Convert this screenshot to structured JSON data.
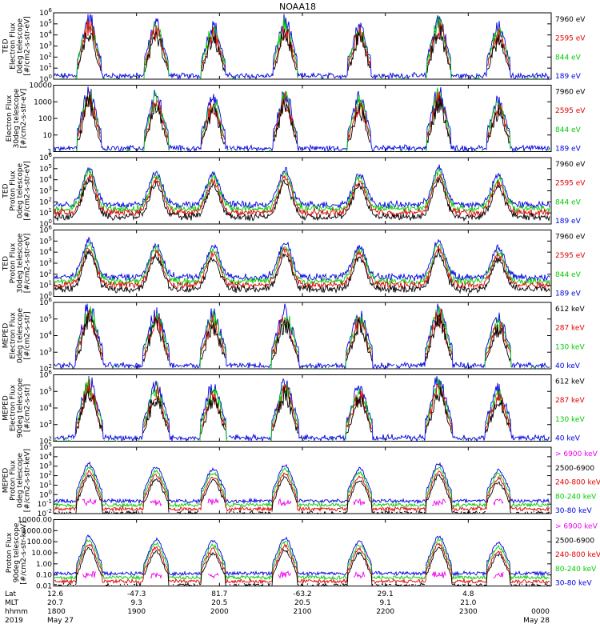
{
  "chart_data": {
    "type": "line",
    "title": "NOAA18",
    "panels": [
      {
        "id": "ted-electron-0deg",
        "ylabel": [
          "TED",
          "Electron Flux",
          "0deg telescope",
          "[#/cm2-s-str-eV]"
        ],
        "yscale": "log",
        "ylim": [
          1,
          1000000
        ],
        "ytick_labels": [
          "10^0",
          "10^1",
          "10^2",
          "10^3",
          "10^4",
          "10^5",
          "10^6"
        ],
        "series": [
          {
            "name": "7960 eV",
            "color": "#000000"
          },
          {
            "name": "2595 eV",
            "color": "#e00000"
          },
          {
            "name": "844 eV",
            "color": "#00cc00"
          },
          {
            "name": "189 eV",
            "color": "#0000e0"
          }
        ]
      },
      {
        "id": "ted-electron-30deg",
        "ylabel": [
          "Electron Flux",
          "30deg telescope",
          "[#/cm2-s-str-eV]"
        ],
        "yscale": "log",
        "ylim": [
          1,
          10000
        ],
        "ytick_labels": [
          "1",
          "10",
          "100",
          "1000",
          "10000"
        ],
        "series": [
          {
            "name": "7960 eV",
            "color": "#000000"
          },
          {
            "name": "2595 eV",
            "color": "#e00000"
          },
          {
            "name": "844 eV",
            "color": "#00cc00"
          },
          {
            "name": "189 eV",
            "color": "#0000e0"
          }
        ]
      },
      {
        "id": "ted-proton-0deg",
        "ylabel": [
          "TED",
          "Proton Flux",
          "0deg telescope",
          "[#/cm2-s-str-eV]"
        ],
        "yscale": "log",
        "ylim": [
          1,
          1000000
        ],
        "ytick_labels": [
          "10^0",
          "10^1",
          "10^2",
          "10^3",
          "10^4",
          "10^5",
          "10^6"
        ],
        "series": [
          {
            "name": "7960 eV",
            "color": "#000000"
          },
          {
            "name": "2595 eV",
            "color": "#e00000"
          },
          {
            "name": "844 eV",
            "color": "#00cc00"
          },
          {
            "name": "189 eV",
            "color": "#0000e0"
          }
        ]
      },
      {
        "id": "ted-proton-30deg",
        "ylabel": [
          "TED",
          "Proton Flux",
          "30deg telescope",
          "[#/cm2-s-str-eV]"
        ],
        "yscale": "log",
        "ylim": [
          1,
          1000000
        ],
        "ytick_labels": [
          "10^0",
          "10^1",
          "10^2",
          "10^3",
          "10^4",
          "10^5",
          "10^6"
        ],
        "series": [
          {
            "name": "7960 eV",
            "color": "#000000"
          },
          {
            "name": "2595 eV",
            "color": "#e00000"
          },
          {
            "name": "844 eV",
            "color": "#00cc00"
          },
          {
            "name": "189 eV",
            "color": "#0000e0"
          }
        ]
      },
      {
        "id": "meped-electron-0deg",
        "ylabel": [
          "MEPED",
          "Electron Flux",
          "0deg telescope",
          "[#/cm2-s-str]"
        ],
        "yscale": "log",
        "ylim": [
          100,
          1000000
        ],
        "ytick_labels": [
          "10^2",
          "10^3",
          "10^4",
          "10^5",
          "10^6"
        ],
        "series": [
          {
            "name": "612 keV",
            "color": "#000000"
          },
          {
            "name": "287 keV",
            "color": "#e00000"
          },
          {
            "name": "130 keV",
            "color": "#00cc00"
          },
          {
            "name": "40 keV",
            "color": "#0000e0"
          }
        ]
      },
      {
        "id": "meped-electron-90deg",
        "ylabel": [
          "MEPED",
          "Electron Flux",
          "90deg telescope",
          "[#/cm2-s-str]"
        ],
        "yscale": "log",
        "ylim": [
          100,
          1000000
        ],
        "ytick_labels": [
          "10^2",
          "10^3",
          "10^4",
          "10^5",
          "10^6"
        ],
        "series": [
          {
            "name": "612 keV",
            "color": "#000000"
          },
          {
            "name": "287 keV",
            "color": "#e00000"
          },
          {
            "name": "130 keV",
            "color": "#00cc00"
          },
          {
            "name": "40 keV",
            "color": "#0000e0"
          }
        ]
      },
      {
        "id": "meped-proton-0deg",
        "ylabel": [
          "MEPED",
          "Proton Flux",
          "0deg telescope",
          "[#/cm2-s-str-keV]"
        ],
        "yscale": "log",
        "ylim": [
          0.01,
          100000
        ],
        "ytick_labels": [
          "10^-2",
          "10^-1",
          "10^0",
          "10^1",
          "10^2",
          "10^3",
          "10^4",
          "10^5"
        ],
        "series": [
          {
            "name": "> 6900 keV",
            "color": "#ee00ee"
          },
          {
            "name": "2500-6900",
            "color": "#000000"
          },
          {
            "name": "240-800 keV",
            "color": "#e00000"
          },
          {
            "name": "80-240 keV",
            "color": "#00cc00"
          },
          {
            "name": "30-80 keV",
            "color": "#0000e0"
          }
        ]
      },
      {
        "id": "meped-proton-90deg",
        "ylabel": [
          "Proton Flux",
          "90deg telescope",
          "[#/cm2-s-str-keV]"
        ],
        "yscale": "log",
        "ylim": [
          0.01,
          10000
        ],
        "ytick_labels": [
          "0.01",
          "0.10",
          "1.00",
          "10.00",
          "100.00",
          "1000.00",
          "10000.00"
        ],
        "series": [
          {
            "name": "> 6900 keV",
            "color": "#ee00ee"
          },
          {
            "name": "2500-6900",
            "color": "#000000"
          },
          {
            "name": "240-800 keV",
            "color": "#e00000"
          },
          {
            "name": "80-240 keV",
            "color": "#00cc00"
          },
          {
            "name": "30-80 keV",
            "color": "#0000e0"
          }
        ]
      }
    ],
    "x_axis": {
      "row_labels": [
        "Lat",
        "MLT",
        "hhmm",
        "2019"
      ],
      "ticks": [
        {
          "lat": "12.6",
          "mlt": "20.7",
          "hhmm": "1800",
          "date": "May 27"
        },
        {
          "lat": "-47.3",
          "mlt": "9.3",
          "hhmm": "1900",
          "date": ""
        },
        {
          "lat": "81.7",
          "mlt": "20.5",
          "hhmm": "2000",
          "date": ""
        },
        {
          "lat": "-63.2",
          "mlt": "20.5",
          "hhmm": "2100",
          "date": ""
        },
        {
          "lat": "29.1",
          "mlt": "9.1",
          "hhmm": "2200",
          "date": ""
        },
        {
          "lat": "4.8",
          "mlt": "21.0",
          "hhmm": "2300",
          "date": ""
        },
        {
          "lat": "",
          "mlt": "",
          "hhmm": "0000",
          "date": "May 28"
        }
      ],
      "hhmm_range": [
        "1800",
        "0000"
      ]
    }
  }
}
